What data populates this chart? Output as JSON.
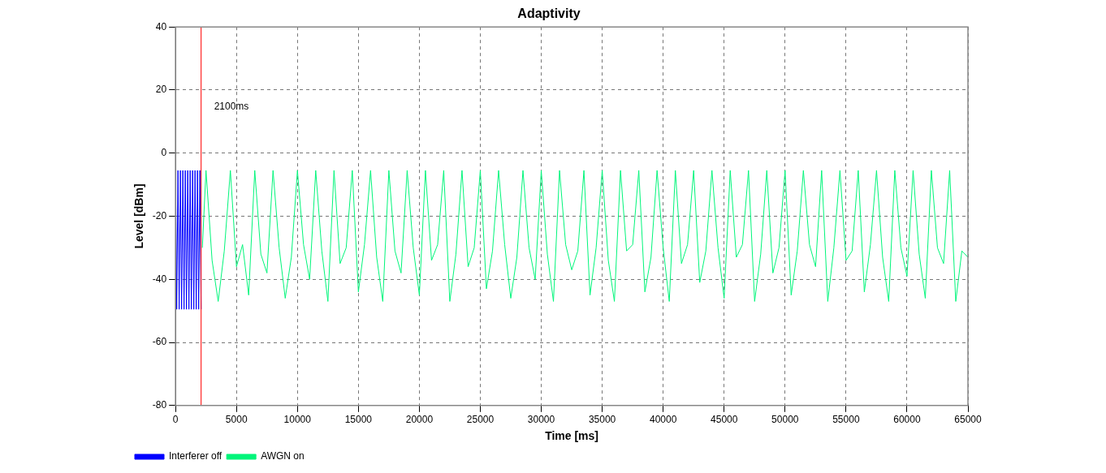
{
  "chart_data": {
    "type": "line",
    "title": "Adaptivity",
    "xlabel": "Time [ms]",
    "ylabel": "Level [dBm]",
    "xlim": [
      0,
      65000
    ],
    "xticks": [
      0,
      5000,
      10000,
      15000,
      20000,
      25000,
      30000,
      35000,
      40000,
      45000,
      50000,
      55000,
      60000,
      65000
    ],
    "ylim": [
      -80,
      40
    ],
    "yticks": [
      -80,
      -60,
      -40,
      -20,
      0,
      20,
      40
    ],
    "grid": true,
    "legend": "bottom left",
    "marker": "none",
    "line_style": "solid",
    "ref_lines": [
      {
        "axis": "x",
        "value": 2100,
        "label": "2100ms",
        "color": "#ff0000"
      }
    ],
    "series": [
      {
        "name": "Interferer off",
        "color": "#0000ff",
        "x": [
          0,
          100,
          200,
          300,
          400,
          500,
          600,
          700,
          800,
          900,
          1000,
          1100,
          1200,
          1300,
          1400,
          1500,
          1600,
          1700,
          1800,
          1900,
          2000,
          2100
        ],
        "values": [
          -5.5,
          -49.5,
          -5.5,
          -49.5,
          -5.5,
          -49.5,
          -5.5,
          -49.5,
          -5.5,
          -49.5,
          -5.5,
          -49.5,
          -5.5,
          -49.5,
          -5.5,
          -49.5,
          -5.5,
          -49.5,
          -5.5,
          -49.5,
          -5.5,
          -49.5
        ]
      },
      {
        "name": "AWGN on",
        "color": "#00f57a",
        "x": [
          2200,
          2500,
          3000,
          3500,
          4000,
          4500,
          5000,
          5500,
          6000,
          6500,
          7000,
          7500,
          8000,
          8500,
          9000,
          9500,
          10000,
          10500,
          11000,
          11500,
          12000,
          12500,
          13000,
          13500,
          14000,
          14500,
          15000,
          15500,
          16000,
          16500,
          17000,
          17500,
          18000,
          18500,
          19000,
          19500,
          20000,
          20500,
          21000,
          21500,
          22000,
          22500,
          23000,
          23500,
          24000,
          24500,
          25000,
          25500,
          26000,
          26500,
          27000,
          27500,
          28000,
          28500,
          29000,
          29500,
          30000,
          30500,
          31000,
          31500,
          32000,
          32500,
          33000,
          33500,
          34000,
          34500,
          35000,
          35500,
          36000,
          36500,
          37000,
          37500,
          38000,
          38500,
          39000,
          39500,
          40000,
          40500,
          41000,
          41500,
          42000,
          42500,
          43000,
          43500,
          44000,
          44500,
          45000,
          45500,
          46000,
          46500,
          47000,
          47500,
          48000,
          48500,
          49000,
          49500,
          50000,
          50500,
          51000,
          51500,
          52000,
          52500,
          53000,
          53500,
          54000,
          54500,
          55000,
          55500,
          56000,
          56500,
          57000,
          57500,
          58000,
          58500,
          59000,
          59500,
          60000,
          60500,
          61000,
          61500,
          62000,
          62500,
          63000,
          63500,
          64000,
          64500,
          65000
        ],
        "values": [
          -30,
          -5.5,
          -34,
          -47,
          -31,
          -5.5,
          -36,
          -29,
          -45,
          -5.5,
          -32,
          -38,
          -5.5,
          -30,
          -46,
          -33,
          -5.5,
          -29,
          -40,
          -5.5,
          -31,
          -47,
          -5.5,
          -35,
          -30,
          -5.5,
          -44,
          -29,
          -5.5,
          -33,
          -47,
          -5.5,
          -31,
          -38,
          -5.5,
          -30,
          -45,
          -5.5,
          -34,
          -29,
          -5.5,
          -47,
          -32,
          -5.5,
          -36,
          -30,
          -5.5,
          -43,
          -31,
          -5.5,
          -29,
          -46,
          -33,
          -5.5,
          -30,
          -40,
          -5.5,
          -32,
          -47,
          -5.5,
          -29,
          -37,
          -31,
          -5.5,
          -45,
          -30,
          -5.5,
          -34,
          -47,
          -5.5,
          -31,
          -29,
          -5.5,
          -44,
          -33,
          -5.5,
          -30,
          -47,
          -5.5,
          -35,
          -29,
          -5.5,
          -41,
          -31,
          -5.5,
          -30,
          -46,
          -5.5,
          -33,
          -29,
          -5.5,
          -47,
          -32,
          -5.5,
          -38,
          -30,
          -5.5,
          -45,
          -31,
          -5.5,
          -29,
          -36,
          -5.5,
          -47,
          -30,
          -5.5,
          -34,
          -31,
          -5.5,
          -44,
          -29,
          -5.5,
          -33,
          -47,
          -5.5,
          -30,
          -39,
          -5.5,
          -32,
          -46,
          -5.5,
          -30,
          -35,
          -5.5,
          -47,
          -31,
          -33
        ]
      }
    ]
  }
}
